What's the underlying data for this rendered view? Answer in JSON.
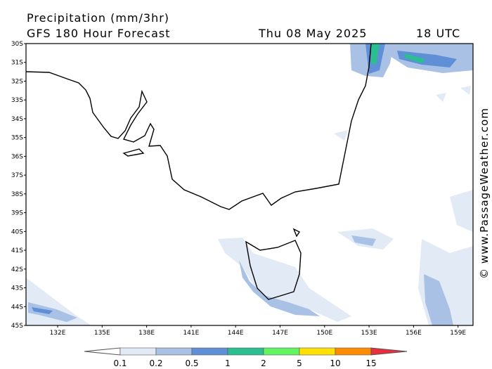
{
  "header": {
    "title": "Precipitation (mm/3hr)",
    "subtitle": "GFS 180 Hour Forecast",
    "date": "Thu 08 May 2025",
    "time": "18 UTC"
  },
  "axes": {
    "lat_labels": [
      "30S",
      "31S",
      "32S",
      "33S",
      "34S",
      "35S",
      "36S",
      "37S",
      "38S",
      "39S",
      "40S",
      "41S",
      "42S",
      "43S",
      "44S",
      "45S"
    ],
    "lon_labels": [
      "132E",
      "135E",
      "138E",
      "141E",
      "144E",
      "147E",
      "150E",
      "153E",
      "156E",
      "159E"
    ]
  },
  "legend": {
    "labels": [
      "0.1",
      "0.2",
      "0.5",
      "1",
      "2",
      "5",
      "10",
      "15"
    ],
    "colors": [
      "#ffffff",
      "#e2eaf6",
      "#a9c1e4",
      "#5f8fd6",
      "#2bbf8f",
      "#62f562",
      "#ffe000",
      "#ff8c00",
      "#e8303c"
    ]
  },
  "watermark": "© www.PassageWeather.com"
}
